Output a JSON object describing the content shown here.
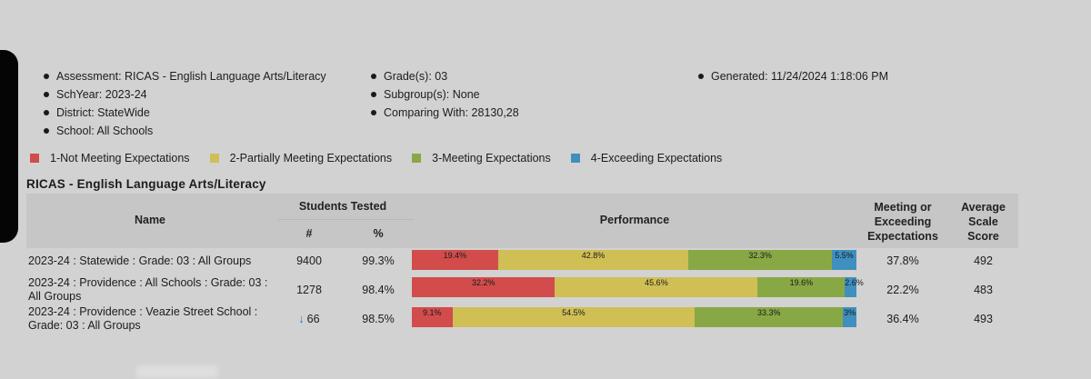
{
  "meta": {
    "col1": [
      "Assessment: RICAS - English Language Arts/Literacy",
      "SchYear: 2023-24",
      "District: StateWide",
      "School: All Schools"
    ],
    "col2": [
      "Grade(s): 03",
      "Subgroup(s): None",
      "Comparing With: 28130,28"
    ],
    "col3": [
      "Generated: 11/24/2024 1:18:06 PM"
    ]
  },
  "legend": [
    {
      "label": "1-Not Meeting Expectations",
      "color": "#d24c4c"
    },
    {
      "label": "2-Partially Meeting Expectations",
      "color": "#cfbf55"
    },
    {
      "label": "3-Meeting Expectations",
      "color": "#88a845"
    },
    {
      "label": "4-Exceeding Expectations",
      "color": "#3f8fbf"
    }
  ],
  "section_title": "RICAS - English Language Arts/Literacy",
  "table": {
    "headers": {
      "name": "Name",
      "students_tested": "Students Tested",
      "count": "#",
      "percent": "%",
      "performance": "Performance",
      "meeting_line1": "Meeting or",
      "meeting_line2": "Exceeding",
      "meeting_line3": "Expectations",
      "avg_line1": "Average",
      "avg_line2": "Scale",
      "avg_line3": "Score"
    },
    "rows": [
      {
        "name": "2023-24 : Statewide : Grade: 03 : All Groups",
        "count": "9400",
        "percent": "99.3%",
        "segments": [
          {
            "value": 19.4,
            "label": "19.4%"
          },
          {
            "value": 42.8,
            "label": "42.8%"
          },
          {
            "value": 32.3,
            "label": "32.3%"
          },
          {
            "value": 5.5,
            "label": "5.5%"
          }
        ],
        "meeting": "37.8%",
        "avg": "492"
      },
      {
        "name": "2023-24 : Providence : All Schools : Grade: 03 : All Groups",
        "count": "1278",
        "percent": "98.4%",
        "segments": [
          {
            "value": 32.2,
            "label": "32.2%"
          },
          {
            "value": 45.6,
            "label": "45.6%"
          },
          {
            "value": 19.6,
            "label": "19.6%"
          },
          {
            "value": 2.6,
            "label": "2.6%"
          }
        ],
        "meeting": "22.2%",
        "avg": "483"
      },
      {
        "name": "2023-24 : Providence : Veazie Street School : Grade: 03 : All Groups",
        "count": "66",
        "count_arrow": "↓",
        "percent": "98.5%",
        "segments": [
          {
            "value": 9.1,
            "label": "9.1%"
          },
          {
            "value": 54.5,
            "label": "54.5%"
          },
          {
            "value": 33.3,
            "label": "33.3%"
          },
          {
            "value": 3,
            "label": "3%"
          }
        ],
        "meeting": "36.4%",
        "avg": "493"
      }
    ]
  }
}
